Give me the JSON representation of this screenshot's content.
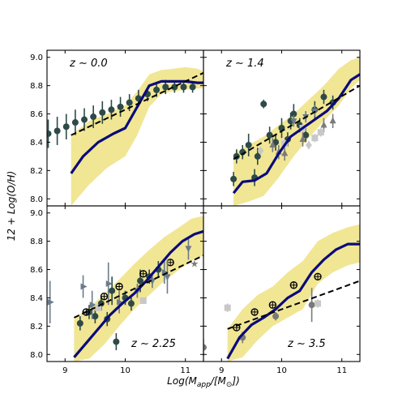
{
  "figure": {
    "xlabel": "Log(M_app/[M_⊙])",
    "ylabel": "12 + Log(O/H)",
    "xlim": [
      8.7,
      11.3
    ],
    "ylim": [
      7.95,
      9.05
    ],
    "x_ticks": [
      "9",
      "10",
      "11"
    ],
    "y_ticks": [
      "8.0",
      "8.2",
      "8.4",
      "8.6",
      "8.8",
      "9.0"
    ],
    "layout": "2x2 grid, shared axes",
    "colors": {
      "band": "#f1e694",
      "model_line": "#0b0b7a",
      "fit_line": "#000000",
      "observed_points": "#2d4a47",
      "grey_dark": "#7a7a7a",
      "grey_light": "#c8c8c8",
      "slate": "#6a7b8c"
    }
  },
  "chart_data": [
    {
      "panel": "top-left",
      "type": "line",
      "label": "z ∼ 0.0",
      "band": {
        "x": [
          9.1,
          9.4,
          9.7,
          10.0,
          10.2,
          10.4,
          10.6,
          10.8,
          11.0,
          11.2,
          11.3
        ],
        "lower": [
          7.95,
          8.1,
          8.22,
          8.3,
          8.45,
          8.65,
          8.74,
          8.76,
          8.77,
          8.78,
          8.78
        ],
        "upper": [
          8.45,
          8.55,
          8.6,
          8.66,
          8.76,
          8.88,
          8.91,
          8.92,
          8.93,
          8.92,
          8.9
        ]
      },
      "model_line": {
        "x": [
          9.1,
          9.3,
          9.55,
          9.8,
          10.0,
          10.2,
          10.4,
          10.6,
          10.8,
          11.0,
          11.2,
          11.3
        ],
        "y": [
          8.18,
          8.3,
          8.4,
          8.46,
          8.5,
          8.65,
          8.8,
          8.83,
          8.83,
          8.83,
          8.82,
          8.82
        ]
      },
      "fit_line": {
        "x": [
          9.1,
          11.3
        ],
        "y": [
          8.45,
          8.89
        ]
      },
      "series": [
        {
          "marker": "circle",
          "color": "#2d4a47",
          "x": [
            8.72,
            8.87,
            9.02,
            9.17,
            9.32,
            9.47,
            9.62,
            9.77,
            9.92,
            10.07,
            10.22,
            10.37,
            10.52,
            10.67,
            10.82,
            10.97,
            11.12
          ],
          "y": [
            8.46,
            8.48,
            8.51,
            8.54,
            8.56,
            8.58,
            8.61,
            8.63,
            8.65,
            8.68,
            8.71,
            8.74,
            8.77,
            8.79,
            8.79,
            8.79,
            8.79
          ],
          "err": [
            0.1,
            0.1,
            0.09,
            0.09,
            0.08,
            0.08,
            0.08,
            0.07,
            0.07,
            0.06,
            0.06,
            0.05,
            0.05,
            0.05,
            0.04,
            0.04,
            0.04
          ]
        }
      ]
    },
    {
      "panel": "top-right",
      "type": "line",
      "label": "z ∼ 1.4",
      "band": {
        "x": [
          9.2,
          9.45,
          9.7,
          9.95,
          10.2,
          10.45,
          10.7,
          10.95,
          11.15,
          11.3
        ],
        "lower": [
          7.95,
          7.98,
          8.02,
          8.15,
          8.3,
          8.43,
          8.55,
          8.66,
          8.78,
          8.84
        ],
        "upper": [
          8.32,
          8.38,
          8.44,
          8.52,
          8.6,
          8.7,
          8.8,
          8.92,
          8.98,
          9.0
        ]
      },
      "model_line": {
        "x": [
          9.2,
          9.35,
          9.55,
          9.75,
          9.95,
          10.15,
          10.35,
          10.55,
          10.75,
          10.95,
          11.15,
          11.3
        ],
        "y": [
          8.04,
          8.12,
          8.13,
          8.18,
          8.32,
          8.44,
          8.5,
          8.56,
          8.62,
          8.71,
          8.84,
          8.88
        ]
      },
      "fit_line": {
        "x": [
          9.2,
          11.3
        ],
        "y": [
          8.28,
          8.8
        ]
      },
      "series": [
        {
          "marker": "circle",
          "color": "#2d4a47",
          "x": [
            9.2,
            9.25,
            9.35,
            9.45,
            9.55,
            9.6,
            9.7,
            9.8,
            9.9,
            10.0,
            10.1,
            10.15,
            10.2,
            10.3,
            10.4,
            10.55,
            10.7,
            10.85
          ],
          "y": [
            8.14,
            8.3,
            8.33,
            8.38,
            8.15,
            8.3,
            8.67,
            8.45,
            8.4,
            8.5,
            8.42,
            8.55,
            8.6,
            8.52,
            8.45,
            8.63,
            8.72,
            8.68
          ],
          "err": [
            0.05,
            0.05,
            0.05,
            0.08,
            0.06,
            0.06,
            0.03,
            0.06,
            0.06,
            0.07,
            0.05,
            0.06,
            0.07,
            0.05,
            0.05,
            0.06,
            0.05,
            0.05
          ]
        },
        {
          "marker": "triangle-up",
          "color": "#7a7a7a",
          "x": [
            9.85,
            9.95,
            10.05,
            10.35,
            10.7,
            10.85
          ],
          "y": [
            8.38,
            8.33,
            8.32,
            8.42,
            8.52,
            8.55
          ],
          "err": [
            0.05,
            0.05,
            0.05,
            0.05,
            0.05,
            0.05
          ]
        },
        {
          "marker": "triangle-down",
          "color": "#6a7b8c",
          "x": [
            10.2,
            10.4,
            10.55
          ],
          "y": [
            8.55,
            8.58,
            8.62
          ],
          "err": [
            0.04,
            0.04,
            0.04
          ]
        },
        {
          "marker": "square",
          "color": "#c8c8c8",
          "x": [
            10.05,
            10.35,
            10.55,
            10.65
          ],
          "y": [
            8.39,
            8.5,
            8.43,
            8.47
          ],
          "err": [
            0.03,
            0.03,
            0.03,
            0.03
          ]
        },
        {
          "marker": "diamond",
          "color": "#c8c8c8",
          "x": [
            9.65,
            10.45
          ],
          "y": [
            8.34,
            8.38
          ],
          "err": [
            0.03,
            0.03
          ]
        }
      ]
    },
    {
      "panel": "bottom-left",
      "type": "line",
      "label": "z ∼ 2.25",
      "band": {
        "x": [
          9.15,
          9.4,
          9.65,
          9.9,
          10.15,
          10.4,
          10.65,
          10.9,
          11.1,
          11.3
        ],
        "lower": [
          7.95,
          7.97,
          8.07,
          8.2,
          8.32,
          8.42,
          8.52,
          8.6,
          8.66,
          8.7
        ],
        "upper": [
          8.25,
          8.33,
          8.43,
          8.53,
          8.64,
          8.74,
          8.83,
          8.9,
          8.96,
          8.98
        ]
      },
      "model_line": {
        "x": [
          9.15,
          9.35,
          9.55,
          9.75,
          9.95,
          10.15,
          10.35,
          10.55,
          10.75,
          10.95,
          11.15,
          11.3
        ],
        "y": [
          7.98,
          8.08,
          8.18,
          8.28,
          8.36,
          8.43,
          8.52,
          8.62,
          8.72,
          8.8,
          8.85,
          8.87
        ]
      },
      "fit_line": {
        "x": [
          9.15,
          11.3
        ],
        "y": [
          8.26,
          8.7
        ]
      },
      "series": [
        {
          "marker": "circle",
          "color": "#2d4a47",
          "x": [
            9.25,
            9.4,
            9.5,
            9.6,
            9.7,
            9.78,
            9.85,
            10.0,
            10.1,
            10.25,
            10.4,
            10.55
          ],
          "y": [
            8.22,
            8.3,
            8.27,
            8.36,
            8.25,
            8.45,
            8.09,
            8.4,
            8.36,
            8.52,
            8.55,
            8.6
          ],
          "err": [
            0.05,
            0.05,
            0.05,
            0.05,
            0.05,
            0.1,
            0.06,
            0.05,
            0.05,
            0.08,
            0.05,
            0.06
          ]
        },
        {
          "marker": "circle-open",
          "color": "#000000",
          "x": [
            9.35,
            9.65,
            9.9,
            10.3,
            10.75
          ],
          "y": [
            8.3,
            8.41,
            8.48,
            8.57,
            8.65
          ],
          "err": [
            0,
            0,
            0,
            0,
            0
          ]
        },
        {
          "marker": "triangle-right",
          "color": "#6a7b8c",
          "x": [
            8.75,
            9.3,
            9.45,
            9.72,
            9.9,
            10.65
          ],
          "y": [
            8.37,
            8.48,
            8.35,
            8.5,
            8.37,
            8.58
          ],
          "err": [
            0.15,
            0.08,
            0.1,
            0.15,
            0.08,
            0.08
          ]
        },
        {
          "marker": "triangle-down",
          "color": "#6a7b8c",
          "x": [
            10.2,
            10.45,
            10.7,
            11.05
          ],
          "y": [
            8.45,
            8.52,
            8.55,
            8.75
          ],
          "err": [
            0.05,
            0.05,
            0.12,
            0.08
          ]
        },
        {
          "marker": "star",
          "color": "#7a7a7a",
          "x": [
            11.15
          ],
          "y": [
            8.64
          ],
          "err": [
            0
          ]
        },
        {
          "marker": "square",
          "color": "#c8c8c8",
          "x": [
            9.55,
            10.3
          ],
          "y": [
            8.33,
            8.38
          ],
          "err": [
            0,
            0
          ]
        }
      ]
    },
    {
      "panel": "bottom-right",
      "type": "line",
      "label": "z ∼ 3.5",
      "band": {
        "x": [
          9.1,
          9.35,
          9.6,
          9.85,
          10.1,
          10.35,
          10.6,
          10.85,
          11.1,
          11.3
        ],
        "lower": [
          7.95,
          7.98,
          8.1,
          8.2,
          8.26,
          8.32,
          8.5,
          8.58,
          8.63,
          8.65
        ],
        "upper": [
          8.18,
          8.32,
          8.42,
          8.48,
          8.58,
          8.66,
          8.8,
          8.86,
          8.9,
          8.92
        ]
      },
      "model_line": {
        "x": [
          9.1,
          9.3,
          9.5,
          9.7,
          9.9,
          10.1,
          10.3,
          10.5,
          10.7,
          10.9,
          11.1,
          11.3
        ],
        "y": [
          7.97,
          8.12,
          8.21,
          8.26,
          8.32,
          8.4,
          8.45,
          8.58,
          8.67,
          8.74,
          8.78,
          8.78
        ]
      },
      "fit_line": {
        "x": [
          9.1,
          11.3
        ],
        "y": [
          8.18,
          8.52
        ]
      },
      "series": [
        {
          "marker": "circle-open",
          "color": "#000000",
          "x": [
            9.25,
            9.55,
            9.85,
            10.2,
            10.6
          ],
          "y": [
            8.19,
            8.3,
            8.35,
            8.49,
            8.55
          ],
          "err": [
            0,
            0,
            0,
            0,
            0
          ]
        },
        {
          "marker": "circle",
          "color": "#7a7a7a",
          "x": [
            9.35,
            9.9,
            10.5,
            8.7
          ],
          "y": [
            8.12,
            8.27,
            8.35,
            8.05
          ],
          "err": [
            0.04,
            0.03,
            0.12,
            0.06
          ]
        },
        {
          "marker": "square",
          "color": "#c8c8c8",
          "x": [
            9.1,
            10.6
          ],
          "y": [
            8.33,
            8.36
          ],
          "err": [
            0.03,
            0.03
          ]
        }
      ]
    }
  ]
}
